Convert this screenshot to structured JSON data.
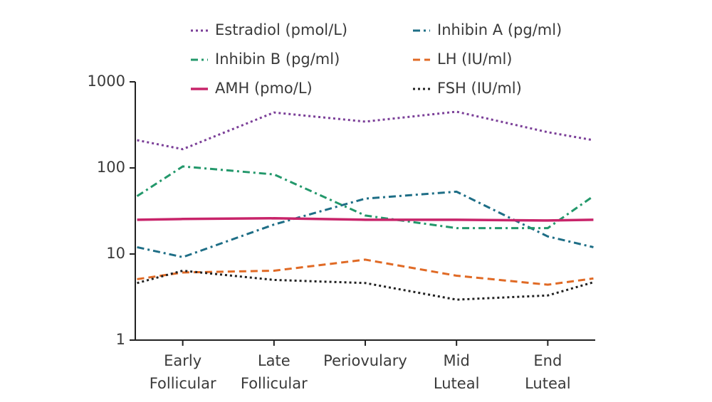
{
  "chart_data": {
    "type": "line",
    "log_y": true,
    "legend": "top",
    "x": [
      -0.5,
      0,
      1,
      2,
      3,
      4,
      4.5
    ],
    "xlim": [
      -0.52,
      4.52
    ],
    "xticks": [
      {
        "value": 0,
        "label": "Early\nFollicular"
      },
      {
        "value": 1,
        "label": "Late\nFollicular"
      },
      {
        "value": 2,
        "label": "Periovulary"
      },
      {
        "value": 3,
        "label": "Mid\nLuteal"
      },
      {
        "value": 4,
        "label": "End\nLuteal"
      }
    ],
    "ylim": [
      1,
      1000
    ],
    "yticks": [
      1,
      10,
      100,
      1000
    ],
    "series": [
      {
        "name": "Estradiol (pmol/L)",
        "color": "#7b3f98",
        "style": "dotted",
        "values": [
          210,
          165,
          440,
          345,
          450,
          260,
          210
        ]
      },
      {
        "name": "Inhibin A (pg/ml)",
        "color": "#1e6e86",
        "style": "dash-dot",
        "values": [
          12,
          9.2,
          22,
          44,
          53,
          16,
          12
        ]
      },
      {
        "name": "Inhibin B (pg/ml)",
        "color": "#23986b",
        "style": "dash-dot",
        "values": [
          47,
          104,
          84,
          28,
          20,
          20,
          47
        ]
      },
      {
        "name": "LH (IU/ml)",
        "color": "#e06a25",
        "style": "dashed",
        "values": [
          5.1,
          6.1,
          6.4,
          8.6,
          5.6,
          4.4,
          5.2
        ]
      },
      {
        "name": "AMH (pmo/L)",
        "color": "#c8246a",
        "style": "solid",
        "values": [
          25,
          25.5,
          26,
          25,
          25,
          24.5,
          25
        ]
      },
      {
        "name": "FSH (IU/ml)",
        "color": "#222222",
        "style": "dotted",
        "values": [
          4.6,
          6.4,
          5.0,
          4.6,
          2.95,
          3.3,
          4.7
        ]
      }
    ]
  }
}
